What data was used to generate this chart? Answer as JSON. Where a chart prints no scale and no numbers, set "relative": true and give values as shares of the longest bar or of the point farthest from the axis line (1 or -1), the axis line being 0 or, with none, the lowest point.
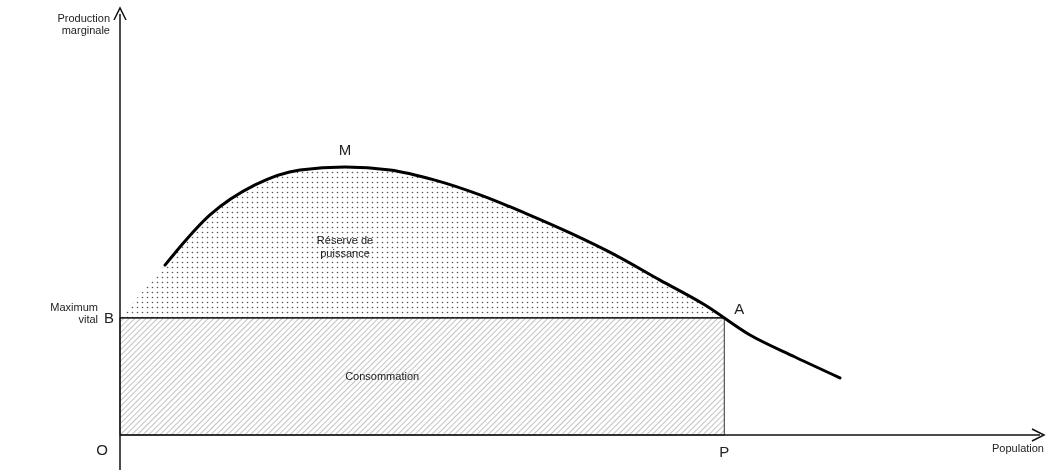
{
  "chart_data": {
    "type": "line",
    "relative": true,
    "categories": [
      null,
      null,
      null,
      null,
      null,
      null,
      null,
      null,
      null,
      null,
      null,
      null,
      null,
      null,
      null,
      null
    ],
    "series": [
      {
        "color": "#000000",
        "values": [
          0.634,
          0.821,
          0.933,
          0.989,
          1,
          0.989,
          0.951,
          0.896,
          0.828,
          0.754,
          0.672,
          0.578,
          0.485,
          0.373,
          0.291,
          0.213
        ]
      }
    ],
    "ref_lines": [
      {
        "axis": "y",
        "value": 0.437,
        "label": "Maximum vital"
      }
    ],
    "bands": [
      {
        "axis": "y",
        "from": 0,
        "to": 0.437,
        "label": "Consommation"
      }
    ],
    "annotations": [
      "M",
      "A",
      "B",
      "O",
      "P",
      "Réserve de puissance",
      "Production marginale",
      "Population"
    ]
  }
}
